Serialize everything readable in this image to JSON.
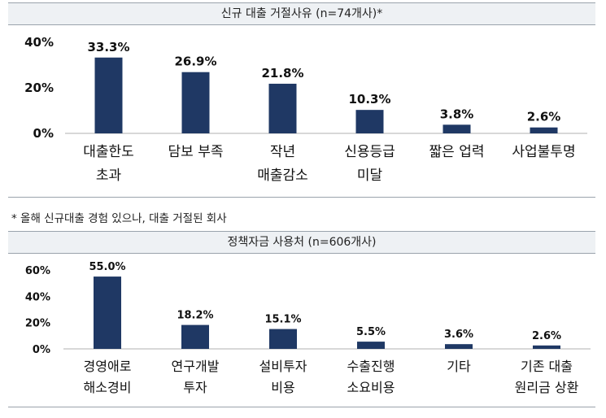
{
  "chart_data": [
    {
      "type": "bar",
      "title": "신규 대출 거절사유 (n=74개사)*",
      "categories": [
        [
          "대출한도",
          "초과"
        ],
        [
          "담보 부족"
        ],
        [
          "작년",
          "매출감소"
        ],
        [
          "신용등급",
          "미달"
        ],
        [
          "짧은 업력"
        ],
        [
          "사업불투명"
        ]
      ],
      "values": [
        33.3,
        26.9,
        21.8,
        10.3,
        3.8,
        2.6
      ],
      "value_labels": [
        "33.3%",
        "26.9%",
        "21.8%",
        "10.3%",
        "3.8%",
        "2.6%"
      ],
      "yticks": [
        "40%",
        "20%",
        "0%"
      ],
      "ylim": [
        0,
        40
      ],
      "grid": false,
      "color": "#1f3864"
    },
    {
      "type": "bar",
      "title": "정책자금 사용처 (n=606개사)",
      "categories": [
        [
          "경영애로",
          "해소경비"
        ],
        [
          "연구개발",
          "투자"
        ],
        [
          "설비투자",
          "비용"
        ],
        [
          "수출진행",
          "소요비용"
        ],
        [
          "기타"
        ],
        [
          "기존 대출",
          "원리금 상환"
        ]
      ],
      "values": [
        55.0,
        18.2,
        15.1,
        5.5,
        3.6,
        2.6
      ],
      "value_labels": [
        "55.0%",
        "18.2%",
        "15.1%",
        "5.5%",
        "3.6%",
        "2.6%"
      ],
      "yticks": [
        "60%",
        "40%",
        "20%",
        "0%"
      ],
      "ylim": [
        0,
        60
      ],
      "grid": false,
      "color": "#1f3864"
    }
  ],
  "note": "* 올해 신규대출 경험 있으나, 대출 거절된 회사"
}
